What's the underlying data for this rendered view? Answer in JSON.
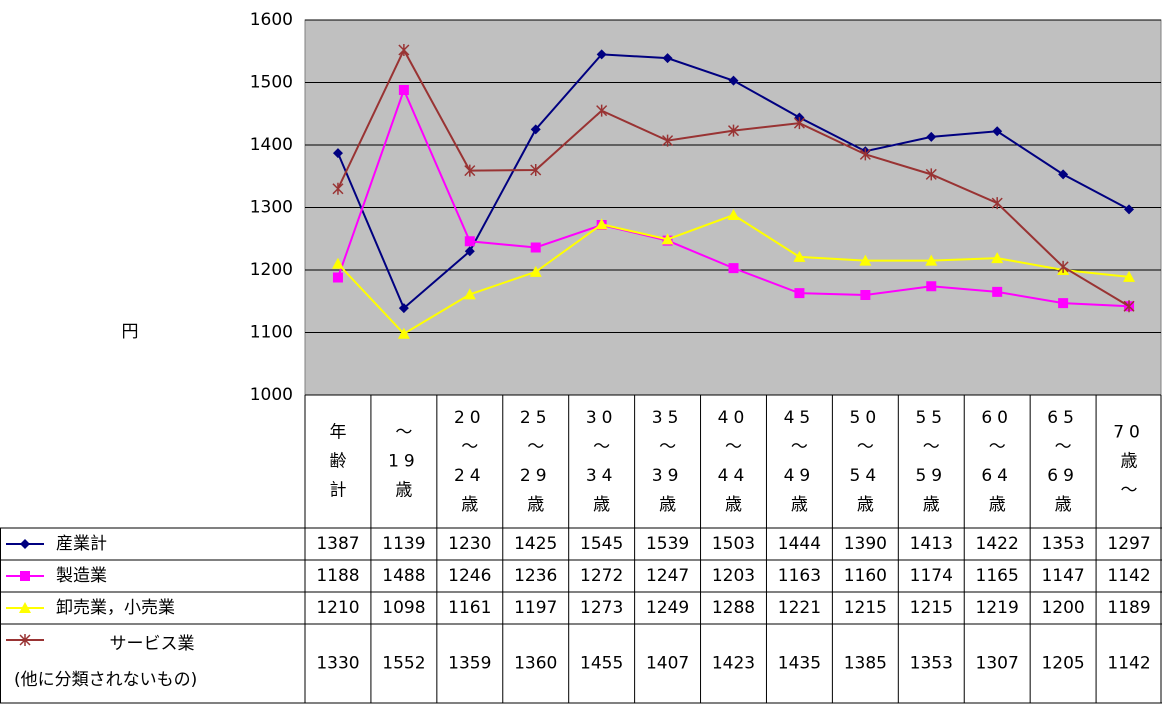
{
  "chart_data": {
    "type": "line",
    "y_label": "円",
    "categories": [
      "年齢計",
      "～19歳",
      "20～24歳",
      "25～29歳",
      "30～34歳",
      "35～39歳",
      "40～44歳",
      "45～49歳",
      "50～54歳",
      "55～59歳",
      "60～64歳",
      "65～69歳",
      "70歳～"
    ],
    "series": [
      {
        "name": "産業計",
        "color": "#000080",
        "marker": "diamond",
        "values": [
          1387,
          1139,
          1230,
          1425,
          1545,
          1539,
          1503,
          1444,
          1390,
          1413,
          1422,
          1353,
          1297
        ]
      },
      {
        "name": "製造業",
        "color": "#ff00ff",
        "marker": "square",
        "values": [
          1188,
          1488,
          1246,
          1236,
          1272,
          1247,
          1203,
          1163,
          1160,
          1174,
          1165,
          1147,
          1142
        ]
      },
      {
        "name": "卸売業，小売業",
        "color": "#ffff00",
        "marker": "triangle",
        "values": [
          1210,
          1098,
          1161,
          1197,
          1273,
          1249,
          1288,
          1221,
          1215,
          1215,
          1219,
          1200,
          1189
        ]
      },
      {
        "name": "サービス業 (他に分類されないもの)",
        "color": "#993333",
        "marker": "star",
        "values": [
          1330,
          1552,
          1359,
          1360,
          1455,
          1407,
          1423,
          1435,
          1385,
          1353,
          1307,
          1205,
          1142
        ]
      }
    ],
    "ylim": [
      1000,
      1600
    ],
    "yticks": [
      1000,
      1100,
      1200,
      1300,
      1400,
      1500,
      1600
    ],
    "grid": true
  }
}
